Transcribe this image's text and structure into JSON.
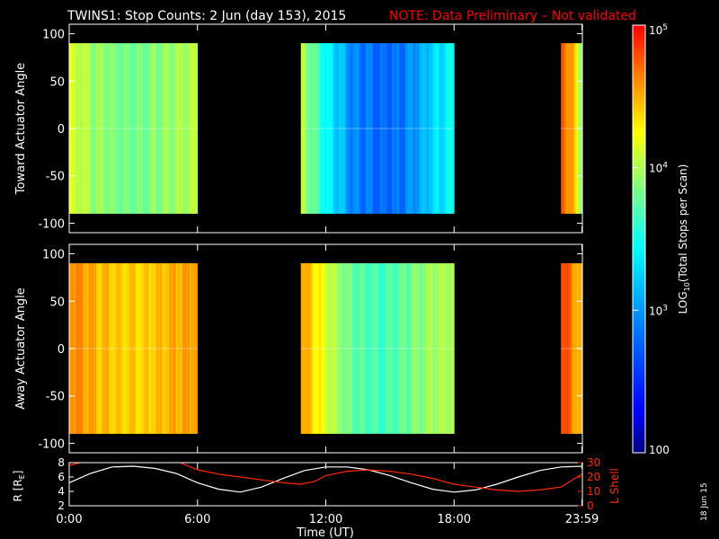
{
  "title": "TWINS1: Stop Counts:  2 Jun (day 153), 2015",
  "note": "NOTE: Data Preliminary – Not validated",
  "date_stamp": "18 Jun 15",
  "colors": {
    "title": "#ffffff",
    "note": "#ff0000",
    "background": "#000000",
    "lshell": "#ff2a00",
    "radius": "#ffffff"
  },
  "colorbar": {
    "label": "LOG10(Total Stops per Scan)",
    "label_prefix": "LOG",
    "label_sub": "10",
    "label_suffix": "(Total Stops per Scan)",
    "scale": "log",
    "range": [
      100,
      100000
    ],
    "ticks": [
      "10^5",
      "10^4",
      "10^3",
      "100"
    ],
    "colormap": [
      "#000080",
      "#0000ff",
      "#0080ff",
      "#00ffff",
      "#80ff80",
      "#ffff00",
      "#ff8000",
      "#ff0000"
    ]
  },
  "chart_data": [
    {
      "type": "heatmap",
      "ylabel": "Toward Actuator Angle",
      "ylim": [
        -110,
        110
      ],
      "yticks": [
        100,
        50,
        0,
        -50,
        -100
      ],
      "xlim": [
        0,
        24
      ],
      "data_range_deg": [
        -90,
        90
      ],
      "segments": [
        {
          "start_ut": "0:00",
          "end_ut": "6:00",
          "level_log10": [
            4.0,
            3.8,
            3.7,
            3.7,
            3.8,
            3.9
          ]
        },
        {
          "start_ut": "10:50",
          "end_ut": "18:00",
          "level_log10": [
            3.9,
            3.3,
            2.9,
            2.8,
            2.8,
            3.1,
            3.3
          ]
        },
        {
          "start_ut": "23:00",
          "end_ut": "23:59",
          "level_log10": [
            4.7,
            4.5,
            3.8
          ]
        }
      ]
    },
    {
      "type": "heatmap",
      "ylabel": "Away Actuator Angle",
      "ylim": [
        -110,
        110
      ],
      "yticks": [
        100,
        50,
        0,
        -50,
        -100
      ],
      "xlim": [
        0,
        24
      ],
      "data_range_deg": [
        -90,
        90
      ],
      "segments": [
        {
          "start_ut": "0:00",
          "end_ut": "6:00",
          "level_log10": [
            4.6,
            4.4,
            4.3,
            4.3,
            4.4,
            4.5
          ]
        },
        {
          "start_ut": "10:50",
          "end_ut": "18:00",
          "level_log10": [
            4.5,
            4.0,
            3.6,
            3.5,
            3.6,
            3.8,
            3.9
          ]
        },
        {
          "start_ut": "23:00",
          "end_ut": "23:59",
          "level_log10": [
            4.8,
            4.6,
            4.3
          ]
        }
      ]
    },
    {
      "type": "line",
      "ylabel": "R [RE]",
      "ylabel_prefix": "R [R",
      "ylabel_sub": "E",
      "ylabel_suffix": "]",
      "ylim": [
        2,
        8
      ],
      "yticks": [
        8,
        6,
        4,
        2
      ],
      "y2label": "L Shell",
      "y2lim": [
        0,
        30
      ],
      "y2ticks": [
        30,
        20,
        10,
        0
      ],
      "xlabel": "Time (UT)",
      "xlim": [
        0,
        24
      ],
      "xticks": [
        "0:00",
        "6:00",
        "12:00",
        "18:00",
        "23:59"
      ],
      "xtick_hours": [
        0,
        6,
        12,
        18,
        23.98
      ],
      "series": [
        {
          "name": "R",
          "axis": "left",
          "x": [
            0,
            1,
            2,
            3,
            4,
            5,
            6,
            7,
            8,
            9,
            10,
            11,
            12,
            13,
            14,
            15,
            16,
            17,
            18,
            19,
            20,
            21,
            22,
            23,
            24
          ],
          "y": [
            5.2,
            6.5,
            7.4,
            7.5,
            7.2,
            6.5,
            5.2,
            4.3,
            3.9,
            4.6,
            5.8,
            6.9,
            7.4,
            7.4,
            7.0,
            6.2,
            5.2,
            4.3,
            3.9,
            4.2,
            5.0,
            6.0,
            6.9,
            7.4,
            7.5
          ]
        },
        {
          "name": "L Shell",
          "axis": "right",
          "x": [
            0,
            0.5,
            1,
            2,
            3,
            4,
            4.8,
            5.2,
            6,
            7,
            8,
            9,
            10,
            10.8,
            11.5,
            12,
            13,
            14,
            15,
            16,
            17,
            18,
            19,
            20,
            21,
            22,
            23,
            23.98
          ],
          "y": [
            28,
            30,
            33,
            33,
            33,
            33,
            32,
            30,
            25,
            22,
            20,
            18,
            16,
            15,
            17,
            21,
            24,
            25,
            24,
            22,
            19,
            15,
            13,
            11,
            10,
            11,
            13,
            22
          ]
        }
      ]
    }
  ]
}
